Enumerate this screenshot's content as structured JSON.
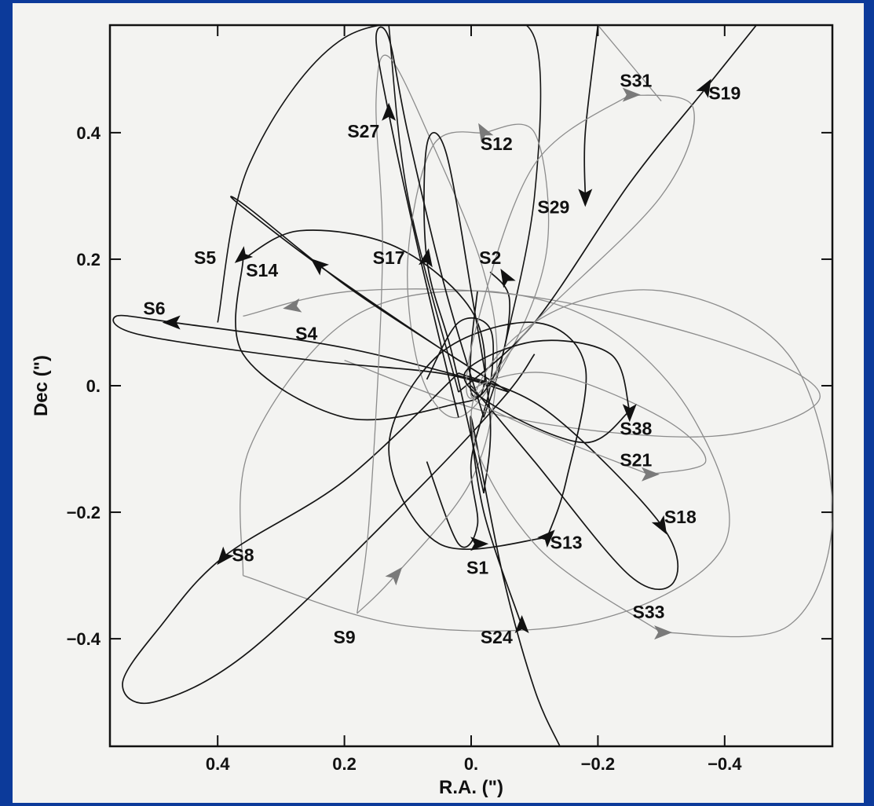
{
  "colors": {
    "background": "#0c3a9a",
    "panel": "#f3f3f1",
    "dark_orbit": "#151515",
    "light_orbit": "#8c8c8c"
  },
  "chart_data": {
    "type": "scatter",
    "title": "",
    "xlabel": "R.A. (\")",
    "ylabel": "Dec (\")",
    "xlim": [
      0.57,
      -0.57
    ],
    "ylim": [
      -0.57,
      0.57
    ],
    "x_ticks": [
      {
        "value": 0.4,
        "label": "0.4"
      },
      {
        "value": 0.2,
        "label": "0.2"
      },
      {
        "value": 0.0,
        "label": "0."
      },
      {
        "value": -0.2,
        "label": "−0.2"
      },
      {
        "value": -0.4,
        "label": "−0.4"
      }
    ],
    "y_ticks": [
      {
        "value": 0.4,
        "label": "0.4"
      },
      {
        "value": 0.2,
        "label": "0.2"
      },
      {
        "value": 0.0,
        "label": "0."
      },
      {
        "value": -0.2,
        "label": "−0.2"
      },
      {
        "value": -0.4,
        "label": "−0.4"
      }
    ],
    "grid": false,
    "legend": "none",
    "series": [
      {
        "name": "S1",
        "shade": "dark",
        "label_pos": [
          -0.01,
          -0.29
        ],
        "arrow": [
          -0.01,
          -0.25,
          0
        ],
        "points": [
          [
            0.07,
            0.01
          ],
          [
            0.02,
            0.1
          ],
          [
            -0.03,
            0.09
          ],
          [
            -0.03,
            0.0
          ],
          [
            0.0,
            -0.12
          ],
          [
            -0.01,
            -0.22
          ],
          [
            0.02,
            -0.25
          ],
          [
            0.07,
            -0.12
          ]
        ]
      },
      {
        "name": "S2",
        "shade": "dark",
        "label_pos": [
          -0.03,
          0.2
        ],
        "arrow": [
          -0.055,
          0.17,
          120
        ],
        "points": [
          [
            -0.03,
            0.18
          ],
          [
            -0.06,
            0.14
          ],
          [
            -0.05,
            0.05
          ],
          [
            -0.02,
            -0.01
          ],
          [
            0.0,
            -0.01
          ],
          [
            0.0,
            0.06
          ],
          [
            -0.01,
            0.15
          ]
        ]
      },
      {
        "name": "S4",
        "shade": "light",
        "label_pos": [
          0.26,
          0.08
        ],
        "arrow": [
          0.28,
          0.125,
          190
        ],
        "points": [
          [
            0.36,
            0.11
          ],
          [
            0.18,
            0.15
          ],
          [
            -0.1,
            0.14
          ],
          [
            -0.42,
            0.06
          ],
          [
            -0.55,
            -0.02
          ],
          [
            -0.38,
            -0.08
          ],
          [
            -0.06,
            -0.05
          ],
          [
            0.2,
            0.04
          ]
        ]
      },
      {
        "name": "S5",
        "shade": "dark",
        "label_pos": [
          0.42,
          0.2
        ],
        "arrow": [
          0.36,
          0.205,
          220
        ],
        "points": [
          [
            0.36,
            0.2
          ],
          [
            0.27,
            0.245
          ],
          [
            0.12,
            0.22
          ],
          [
            0.0,
            0.12
          ],
          [
            -0.02,
            0.0
          ],
          [
            0.03,
            -0.03
          ],
          [
            0.2,
            -0.05
          ],
          [
            0.36,
            0.05
          ],
          [
            0.36,
            0.2
          ]
        ]
      },
      {
        "name": "S6",
        "shade": "dark",
        "label_pos": [
          0.5,
          0.12
        ],
        "arrow": [
          0.47,
          0.1,
          180
        ],
        "points": [
          [
            -0.04,
            0.0
          ],
          [
            0.2,
            0.06
          ],
          [
            0.47,
            0.1
          ],
          [
            0.56,
            0.11
          ],
          [
            0.52,
            0.08
          ],
          [
            0.25,
            0.04
          ],
          [
            0.05,
            0.02
          ],
          [
            -0.06,
            -0.01
          ]
        ]
      },
      {
        "name": "S8",
        "shade": "dark",
        "label_pos": [
          0.36,
          -0.27
        ],
        "arrow": [
          0.39,
          -0.27,
          230
        ],
        "points": [
          [
            0.02,
            0.02
          ],
          [
            0.2,
            -0.15
          ],
          [
            0.39,
            -0.27
          ],
          [
            0.49,
            -0.38
          ],
          [
            0.55,
            -0.47
          ],
          [
            0.5,
            -0.5
          ],
          [
            0.35,
            -0.42
          ],
          [
            0.1,
            -0.18
          ],
          [
            -0.05,
            -0.02
          ],
          [
            -0.1,
            0.05
          ]
        ]
      },
      {
        "name": "S9",
        "shade": "light",
        "label_pos": [
          0.2,
          -0.4
        ],
        "arrow": [
          0.12,
          -0.3,
          50
        ],
        "points": [
          [
            0.18,
            -0.36
          ],
          [
            0.12,
            -0.3
          ],
          [
            0.0,
            -0.15
          ],
          [
            -0.04,
            0.02
          ],
          [
            -0.02,
            0.18
          ],
          [
            0.06,
            0.38
          ],
          [
            0.13,
            0.52
          ],
          [
            0.15,
            0.45
          ],
          [
            0.14,
            0.2
          ],
          [
            0.16,
            -0.2
          ],
          [
            0.18,
            -0.36
          ]
        ]
      },
      {
        "name": "S12",
        "shade": "light",
        "label_pos": [
          -0.04,
          0.38
        ],
        "arrow": [
          -0.02,
          0.4,
          120
        ],
        "points": [
          [
            -0.02,
            0.4
          ],
          [
            -0.1,
            0.4
          ],
          [
            -0.12,
            0.22
          ],
          [
            -0.06,
            0.05
          ],
          [
            0.02,
            -0.05
          ],
          [
            0.08,
            0.02
          ],
          [
            0.1,
            0.2
          ],
          [
            0.06,
            0.38
          ],
          [
            -0.02,
            0.4
          ]
        ]
      },
      {
        "name": "S13",
        "shade": "dark",
        "label_pos": [
          -0.15,
          -0.25
        ],
        "arrow": [
          -0.12,
          -0.24,
          45
        ],
        "points": [
          [
            -0.12,
            -0.24
          ],
          [
            0.05,
            -0.25
          ],
          [
            0.13,
            -0.1
          ],
          [
            0.05,
            0.05
          ],
          [
            -0.1,
            0.1
          ],
          [
            -0.18,
            0.03
          ],
          [
            -0.15,
            -0.15
          ],
          [
            -0.12,
            -0.24
          ]
        ]
      },
      {
        "name": "S14",
        "shade": "dark",
        "label_pos": [
          0.33,
          0.18
        ],
        "arrow": [
          0.24,
          0.19,
          140
        ],
        "points": [
          [
            -0.06,
            -0.01
          ],
          [
            0.05,
            0.06
          ],
          [
            0.24,
            0.19
          ],
          [
            0.37,
            0.29
          ],
          [
            0.35,
            0.28
          ],
          [
            0.2,
            0.16
          ],
          [
            0.05,
            0.06
          ],
          [
            -0.06,
            -0.01
          ]
        ]
      },
      {
        "name": "S17",
        "shade": "dark",
        "label_pos": [
          0.13,
          0.2
        ],
        "arrow": [
          0.07,
          0.2,
          80
        ],
        "points": [
          [
            -0.02,
            -0.17
          ],
          [
            0.03,
            0.05
          ],
          [
            0.07,
            0.2
          ],
          [
            0.07,
            0.38
          ],
          [
            0.04,
            0.37
          ],
          [
            0.0,
            0.15
          ],
          [
            -0.03,
            -0.05
          ],
          [
            -0.02,
            -0.17
          ]
        ]
      },
      {
        "name": "S18",
        "shade": "dark",
        "label_pos": [
          -0.33,
          -0.21
        ],
        "arrow": [
          -0.3,
          -0.22,
          300
        ],
        "points": [
          [
            0.02,
            0.02
          ],
          [
            -0.12,
            -0.04
          ],
          [
            -0.3,
            -0.22
          ],
          [
            -0.32,
            -0.31
          ],
          [
            -0.25,
            -0.3
          ],
          [
            -0.1,
            -0.12
          ],
          [
            0.0,
            0.0
          ]
        ]
      },
      {
        "name": "S19",
        "shade": "dark",
        "label_pos": [
          -0.4,
          0.46
        ],
        "arrow": [
          -0.37,
          0.47,
          60
        ],
        "points": [
          [
            0.02,
            -0.01
          ],
          [
            -0.1,
            0.1
          ],
          [
            -0.25,
            0.32
          ],
          [
            -0.37,
            0.47
          ],
          [
            -0.45,
            0.57
          ]
        ]
      },
      {
        "name": "S21",
        "shade": "light",
        "label_pos": [
          -0.26,
          -0.12
        ],
        "arrow": [
          -0.28,
          -0.14,
          0
        ],
        "points": [
          [
            -0.28,
            -0.14
          ],
          [
            -0.08,
            -0.06
          ],
          [
            0.0,
            -0.01
          ],
          [
            -0.12,
            0.02
          ],
          [
            -0.3,
            -0.05
          ],
          [
            -0.37,
            -0.12
          ],
          [
            -0.28,
            -0.14
          ]
        ]
      },
      {
        "name": "S24",
        "shade": "dark",
        "label_pos": [
          -0.04,
          -0.4
        ],
        "arrow": [
          -0.08,
          -0.38,
          90
        ],
        "points": [
          [
            -0.08,
            -0.38
          ],
          [
            -0.02,
            -0.2
          ],
          [
            0.0,
            -0.05
          ],
          [
            -0.05,
            -0.3
          ],
          [
            -0.1,
            -0.48
          ],
          [
            -0.14,
            -0.57
          ]
        ]
      },
      {
        "name": "S27",
        "shade": "dark",
        "label_pos": [
          0.17,
          0.4
        ],
        "arrow": [
          0.13,
          0.43,
          90
        ],
        "points": [
          [
            0.02,
            -0.05
          ],
          [
            0.08,
            0.2
          ],
          [
            0.13,
            0.43
          ],
          [
            0.15,
            0.55
          ],
          [
            0.13,
            0.55
          ],
          [
            0.1,
            0.4
          ],
          [
            0.04,
            0.15
          ],
          [
            -0.02,
            -0.05
          ]
        ]
      },
      {
        "name": "S29",
        "shade": "dark",
        "label_pos": [
          -0.13,
          0.28
        ],
        "arrow": [
          -0.18,
          0.3,
          270
        ],
        "points": [
          [
            -0.18,
            0.3
          ],
          [
            -0.18,
            0.4
          ],
          [
            -0.2,
            0.57
          ]
        ]
      },
      {
        "name": "S31",
        "shade": "light",
        "label_pos": [
          -0.26,
          0.48
        ],
        "arrow": [
          -0.25,
          0.46,
          0
        ],
        "points": [
          [
            -0.25,
            0.46
          ],
          [
            -0.1,
            0.35
          ],
          [
            -0.01,
            0.1
          ],
          [
            0.0,
            -0.02
          ],
          [
            -0.1,
            0.1
          ],
          [
            -0.3,
            0.3
          ],
          [
            -0.35,
            0.44
          ],
          [
            -0.25,
            0.46
          ]
        ]
      },
      {
        "name": "S33",
        "shade": "light",
        "label_pos": [
          -0.28,
          -0.36
        ],
        "arrow": [
          -0.3,
          -0.39,
          0
        ],
        "points": [
          [
            -0.3,
            -0.39
          ],
          [
            -0.1,
            -0.25
          ],
          [
            0.0,
            -0.05
          ],
          [
            -0.1,
            0.1
          ],
          [
            -0.3,
            0.15
          ],
          [
            -0.5,
            0.05
          ],
          [
            -0.57,
            -0.2
          ],
          [
            -0.5,
            -0.38
          ],
          [
            -0.3,
            -0.39
          ]
        ]
      },
      {
        "name": "S38",
        "shade": "dark",
        "label_pos": [
          -0.26,
          -0.07
        ],
        "arrow": [
          -0.25,
          -0.04,
          270
        ],
        "points": [
          [
            -0.25,
            -0.04
          ],
          [
            -0.18,
            -0.09
          ],
          [
            -0.05,
            -0.04
          ],
          [
            0.01,
            0.02
          ],
          [
            -0.1,
            0.07
          ],
          [
            -0.22,
            0.05
          ],
          [
            -0.25,
            -0.04
          ]
        ]
      }
    ],
    "extra_orbits": [
      {
        "shade": "dark",
        "points": [
          [
            0.4,
            0.1
          ],
          [
            0.35,
            0.35
          ],
          [
            0.2,
            0.55
          ],
          [
            0.0,
            0.57
          ],
          [
            -0.1,
            0.55
          ],
          [
            -0.1,
            0.3
          ],
          [
            -0.05,
            0.05
          ],
          [
            -0.02,
            -0.05
          ]
        ]
      },
      {
        "shade": "light",
        "points": [
          [
            0.36,
            -0.3
          ],
          [
            0.35,
            -0.1
          ],
          [
            0.2,
            0.1
          ],
          [
            0.0,
            0.15
          ],
          [
            -0.2,
            0.1
          ],
          [
            -0.35,
            -0.05
          ],
          [
            -0.4,
            -0.25
          ],
          [
            -0.2,
            -0.37
          ],
          [
            0.1,
            -0.38
          ],
          [
            0.36,
            -0.3
          ]
        ]
      },
      {
        "shade": "light",
        "points": [
          [
            -0.3,
            0.45
          ],
          [
            -0.2,
            0.57
          ]
        ]
      },
      {
        "shade": "dark",
        "points": [
          [
            0.02,
            -0.01
          ],
          [
            0.1,
            0.3
          ],
          [
            0.13,
            0.57
          ]
        ]
      }
    ]
  }
}
